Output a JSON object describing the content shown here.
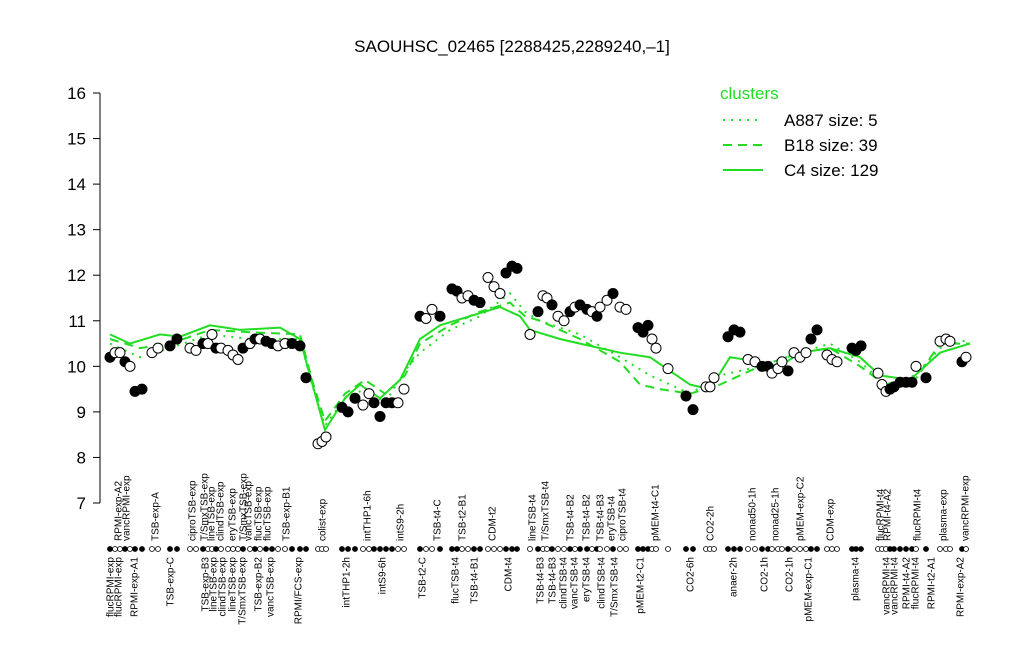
{
  "chart_data": {
    "type": "scatter",
    "title": "SAOUHSC_02465 [2288425,2289240,–1]",
    "ylim": [
      7,
      16
    ],
    "yticks": [
      7,
      8,
      9,
      10,
      11,
      12,
      13,
      14,
      15,
      16
    ],
    "xlim": [
      100,
      975
    ],
    "legend_title": "clusters",
    "legend_position": "top-right",
    "color": "#22dd22",
    "points": {
      "x": [
        110,
        115,
        120,
        125,
        130,
        135,
        142,
        152,
        158,
        170,
        177,
        190,
        196,
        203,
        208,
        212,
        216,
        221,
        228,
        233,
        238,
        243,
        250,
        255,
        260,
        266,
        272,
        278,
        285,
        292,
        300,
        306,
        318,
        322,
        326,
        342,
        348,
        355,
        363,
        369,
        374,
        380,
        386,
        392,
        398,
        404,
        420,
        426,
        432,
        440,
        452,
        457,
        462,
        468,
        474,
        480,
        488,
        494,
        500,
        506,
        512,
        517,
        530,
        538,
        543,
        547,
        552,
        558,
        564,
        570,
        575,
        580,
        587,
        592,
        597,
        600,
        607,
        613,
        620,
        626,
        638,
        643,
        648,
        652,
        656,
        668,
        686,
        693,
        706,
        710,
        714,
        728,
        734,
        740,
        748,
        755,
        762,
        768,
        772,
        778,
        782,
        788,
        794,
        800,
        806,
        811,
        817,
        827,
        832,
        837,
        852,
        856,
        861,
        878,
        882,
        886,
        890,
        894,
        900,
        906,
        912,
        916,
        926,
        940,
        946,
        950,
        962,
        966
      ],
      "y": [
        10.2,
        10.3,
        10.3,
        10.1,
        10.0,
        9.45,
        9.5,
        10.3,
        10.4,
        10.45,
        10.6,
        10.4,
        10.35,
        10.5,
        10.5,
        10.7,
        10.4,
        10.4,
        10.35,
        10.25,
        10.15,
        10.4,
        10.5,
        10.6,
        10.6,
        10.55,
        10.5,
        10.45,
        10.5,
        10.5,
        10.45,
        9.75,
        8.3,
        8.35,
        8.45,
        9.1,
        9.0,
        9.3,
        9.15,
        9.4,
        9.2,
        8.9,
        9.2,
        9.2,
        9.2,
        9.5,
        11.1,
        11.05,
        11.25,
        11.1,
        11.7,
        11.65,
        11.5,
        11.55,
        11.45,
        11.4,
        11.95,
        11.75,
        11.6,
        12.05,
        12.2,
        12.15,
        10.7,
        11.2,
        11.55,
        11.5,
        11.35,
        11.1,
        11.0,
        11.2,
        11.3,
        11.35,
        11.25,
        11.2,
        11.1,
        11.3,
        11.45,
        11.6,
        11.3,
        11.25,
        10.85,
        10.75,
        10.9,
        10.6,
        10.4,
        9.95,
        9.35,
        9.05,
        9.55,
        9.55,
        9.75,
        10.65,
        10.8,
        10.75,
        10.15,
        10.1,
        10.0,
        10.0,
        9.85,
        9.95,
        10.1,
        9.9,
        10.3,
        10.2,
        10.3,
        10.6,
        10.8,
        10.25,
        10.15,
        10.1,
        10.4,
        10.35,
        10.45,
        9.85,
        9.6,
        9.45,
        9.5,
        9.55,
        9.65,
        9.65,
        9.65,
        10.0,
        9.75,
        10.55,
        10.6,
        10.55,
        10.1,
        10.2
      ],
      "filled": [
        true,
        false,
        false,
        true,
        false,
        true,
        true,
        false,
        false,
        true,
        true,
        false,
        false,
        true,
        false,
        false,
        true,
        false,
        false,
        false,
        false,
        true,
        false,
        true,
        false,
        true,
        true,
        false,
        false,
        true,
        true,
        true,
        false,
        false,
        false,
        true,
        true,
        true,
        false,
        false,
        true,
        true,
        true,
        true,
        false,
        false,
        true,
        false,
        false,
        true,
        true,
        true,
        false,
        false,
        true,
        true,
        false,
        false,
        false,
        true,
        true,
        true,
        false,
        true,
        false,
        false,
        true,
        false,
        false,
        true,
        false,
        true,
        true,
        false,
        true,
        false,
        false,
        true,
        false,
        false,
        true,
        true,
        true,
        false,
        false,
        false,
        true,
        true,
        false,
        false,
        false,
        true,
        true,
        true,
        false,
        false,
        true,
        true,
        false,
        false,
        false,
        true,
        false,
        false,
        false,
        true,
        true,
        false,
        false,
        false,
        true,
        true,
        true,
        false,
        false,
        false,
        true,
        true,
        true,
        true,
        true,
        false,
        true,
        false,
        false,
        false,
        true,
        false
      ]
    },
    "series": [
      {
        "name": "A887 size: 5",
        "dash": "dotted",
        "color": "#22dd22",
        "x": [
          110,
          140,
          170,
          210,
          250,
          300,
          312,
          325,
          345,
          365,
          385,
          405,
          420,
          450,
          480,
          510,
          525,
          540,
          580,
          620,
          650,
          690,
          720,
          760,
          800,
          830,
          860,
          885,
          915,
          940,
          970
        ],
        "values": [
          10.5,
          10.2,
          10.4,
          10.7,
          10.6,
          10.6,
          9.6,
          8.7,
          9.3,
          9.5,
          9.2,
          9.9,
          10.3,
          10.8,
          11.1,
          11.6,
          11.2,
          11.0,
          10.7,
          10.2,
          9.8,
          9.4,
          9.8,
          10.0,
          10.3,
          10.5,
          10.1,
          9.6,
          9.8,
          10.4,
          10.6
        ]
      },
      {
        "name": "B18 size: 39",
        "dash": "dashed",
        "color": "#22dd22",
        "x": [
          110,
          140,
          170,
          210,
          250,
          300,
          312,
          325,
          345,
          365,
          385,
          405,
          420,
          450,
          480,
          510,
          525,
          540,
          580,
          620,
          640,
          660,
          690,
          720,
          760,
          800,
          830,
          860,
          885,
          915,
          940,
          970
        ],
        "values": [
          10.6,
          10.4,
          10.5,
          10.8,
          10.75,
          10.7,
          9.7,
          8.8,
          9.4,
          9.7,
          9.4,
          9.8,
          10.5,
          10.9,
          11.2,
          11.4,
          11.1,
          11.0,
          10.6,
          10.1,
          9.6,
          9.5,
          9.4,
          9.6,
          10.0,
          10.3,
          10.4,
          10.0,
          9.6,
          9.7,
          10.5,
          10.5
        ]
      },
      {
        "name": "C4 size: 129",
        "dash": "solid",
        "color": "#22dd22",
        "x": [
          110,
          130,
          160,
          180,
          210,
          240,
          280,
          300,
          310,
          325,
          345,
          360,
          380,
          400,
          420,
          440,
          470,
          500,
          520,
          530,
          560,
          580,
          620,
          650,
          690,
          710,
          730,
          760,
          780,
          800,
          830,
          860,
          880,
          910,
          940,
          970
        ],
        "values": [
          10.7,
          10.5,
          10.7,
          10.65,
          10.9,
          10.8,
          10.85,
          10.6,
          9.8,
          8.6,
          9.3,
          9.6,
          9.3,
          9.7,
          10.6,
          10.9,
          11.1,
          11.3,
          11.1,
          10.8,
          10.6,
          10.5,
          10.3,
          10.2,
          9.6,
          9.5,
          10.2,
          10.1,
          10.0,
          10.3,
          10.4,
          10.2,
          9.8,
          9.7,
          10.3,
          10.5
        ]
      }
    ],
    "top_labels": {
      "x": [
        118,
        126,
        155,
        192,
        204,
        211,
        220,
        232,
        243,
        248,
        258,
        267,
        286,
        322,
        367,
        400,
        437,
        462,
        492,
        532,
        545,
        570,
        586,
        600,
        611,
        622,
        655,
        710,
        752,
        775,
        800,
        830,
        880,
        887,
        917,
        943,
        965
      ],
      "labels": [
        "RPMI-exp-A2",
        "vancRPMI-exp",
        "TSB-exp-A",
        "ciproTSB-exp",
        "T/SmxTSB-exp",
        "lineTSB-exp",
        "clindTSB-exp",
        "eryTSB-exp",
        "T/SmxTSB-exp",
        "vancTSB-exp",
        "flucTSB-exp",
        "flucTSB-exp",
        "TSB-exp-B1",
        "colist-exp",
        "intTHP1-6h",
        "intS9-2h",
        "TSB-t4-C",
        "TSB-t2-B1",
        "CDM-t2",
        "lineTSB-t4",
        "T/SmxTSB-t4",
        "TSB-t4-B2",
        "TSB-t4-B2",
        "TSB-t4-B3",
        "eryTSB-t4",
        "ciproTSB-t4",
        "pMEM-t4-C1",
        "CO2-2h",
        "nonad50-1h",
        "nonad25-1h",
        "pMEM-exp-C2",
        "CDM-exp",
        "flucRPMI-t4",
        "RPMI-t4-A2",
        "flucRPMI-t4",
        "plasma-exp",
        "vancRPMI-exp"
      ]
    },
    "bottom_labels": {
      "x": [
        110,
        118,
        134,
        170,
        205,
        213,
        222,
        232,
        242,
        258,
        270,
        298,
        346,
        382,
        422,
        455,
        474,
        508,
        540,
        552,
        563,
        574,
        586,
        601,
        614,
        640,
        690,
        733,
        764,
        789,
        808,
        855,
        886,
        894,
        906,
        915,
        931,
        960
      ],
      "labels": [
        "flucRPMI-exp",
        "flucRPMI-exp",
        "RPMI-exp-A1",
        "TSB-exp-C",
        "TSB-exp-B3",
        "lineTSB-exp",
        "clindTSB-exp",
        "lineTSB-exp",
        "T/SmxTSB-exp",
        "TSB-exp-B2",
        "vancTSB-exp",
        "RPMI/FCS-exp",
        "intTHP1-2h",
        "intS9-6h",
        "TSB-t2-C",
        "flucTSB-t4",
        "TSB-t4-B1",
        "CDM-t4",
        "TSB-t4-B3",
        "TSB-t4-B3",
        "clindTSB-t4",
        "vancTSB-t4",
        "eryTSB-t4",
        "clindTSB-t4",
        "T/SmxTSB-t4",
        "pMEM-t2-C1",
        "CO2-6h",
        "anaer-2h",
        "CO2-1h",
        "CO2-1h",
        "pMEM-exp-C1",
        "plasma-t4",
        "vancRPMI-t4",
        "vancRPMI-t4",
        "RPMI-t4-A2",
        "flucRPMI-t4",
        "RPMI-t2-A1",
        "RPMI-exp-A2"
      ]
    }
  }
}
